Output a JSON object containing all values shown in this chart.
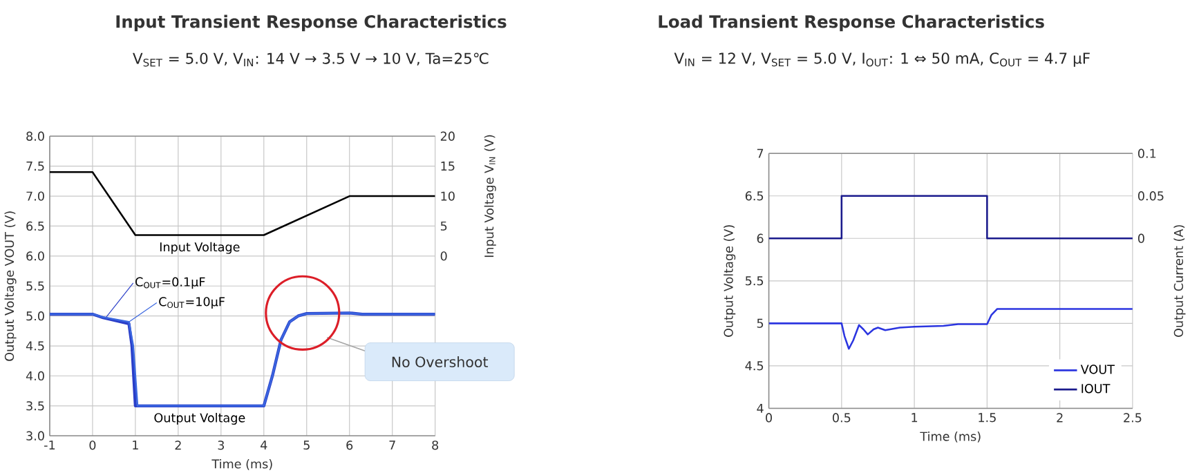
{
  "chart_data": [
    {
      "type": "line",
      "title": "Input Transient Response Characteristics",
      "subtitle": "V$_{SET}$ = 5.0 V, V$_{IN}$: 14 V → 3.5 V → 10 V,  Ta=25℃",
      "xlabel": "Time (ms)",
      "ylabel": "Output Voltage VOUT (V)",
      "y2label": "Input Voltage V$_{IN}$ (V)",
      "xlim": [
        -1,
        8
      ],
      "ylim": [
        3,
        8
      ],
      "y2lim": [
        -30,
        20
      ],
      "xticks": [
        -1,
        0,
        1,
        2,
        3,
        4,
        5,
        6,
        7,
        8
      ],
      "yticks": [
        {
          "value": 3,
          "label": "3.0"
        },
        {
          "value": 3.5,
          "label": "3.5"
        },
        {
          "value": 4,
          "label": "4.0"
        },
        {
          "value": 4.5,
          "label": "4.5"
        },
        {
          "value": 5,
          "label": "5.0"
        },
        {
          "value": 5.5,
          "label": "5.5"
        },
        {
          "value": 6,
          "label": "6.0"
        },
        {
          "value": 6.5,
          "label": "6.5"
        },
        {
          "value": 7,
          "label": "7.0"
        },
        {
          "value": 7.5,
          "label": "7.5"
        },
        {
          "value": 8,
          "label": "8.0"
        }
      ],
      "y2ticks": [
        0,
        5,
        10,
        15,
        20
      ],
      "grid": true,
      "legend": false,
      "series": [
        {
          "name": "Input Voltage",
          "color": "#000000",
          "axis": "y2",
          "x": [
            -1,
            0,
            1,
            4,
            6,
            8
          ],
          "values": [
            14,
            14,
            3.5,
            3.5,
            10,
            10
          ]
        },
        {
          "name": "C$_{OUT}$=0.1µF",
          "color": "#2a3ec8",
          "x": [
            -1,
            0,
            0.25,
            0.85,
            0.92,
            1.0,
            4,
            4.2,
            4.4,
            4.6,
            4.8,
            5,
            6,
            6.3,
            8
          ],
          "values": [
            5.03,
            5.03,
            4.97,
            4.87,
            4.5,
            3.5,
            3.5,
            4.0,
            4.6,
            4.9,
            5.0,
            5.04,
            5.05,
            5.03,
            5.03
          ]
        },
        {
          "name": "C$_{OUT}$=10µF",
          "color": "#3a66e0",
          "x": [
            -1,
            0,
            0.25,
            0.85,
            0.95,
            1.05,
            4,
            4.2,
            4.4,
            4.6,
            4.8,
            5,
            6,
            6.3,
            8
          ],
          "values": [
            5.03,
            5.03,
            4.98,
            4.9,
            4.5,
            3.5,
            3.5,
            4.0,
            4.6,
            4.9,
            5.0,
            5.04,
            5.05,
            5.03,
            5.03
          ]
        }
      ],
      "annotations": [
        {
          "text": "Output Voltage",
          "x": 2.5,
          "y": 3.5
        },
        "No Overshoot"
      ]
    },
    {
      "type": "line",
      "title": "Load Transient Response Characteristics",
      "subtitle": "V$_{IN}$ = 12 V, V$_{SET}$ = 5.0 V, I$_{OUT}$: 1 ⇔ 50 mA, C$_{OUT}$ = 4.7 µF",
      "xlabel": "Time (ms)",
      "ylabel": "Output Voltage (V)",
      "y2label": "Output Current (A)",
      "xlim": [
        0,
        2.5
      ],
      "ylim": [
        4,
        7
      ],
      "y2lim": [
        -0.2,
        0.1
      ],
      "xticks": [
        0,
        0.5,
        1,
        1.5,
        2,
        2.5
      ],
      "yticks": [
        4,
        4.5,
        5,
        5.5,
        6,
        6.5,
        7
      ],
      "y2ticks": [
        0,
        0.05,
        0.1
      ],
      "grid": true,
      "legend": "bottom right",
      "series": [
        {
          "name": "VOUT",
          "color": "#2b35e0",
          "x": [
            0,
            0.5,
            0.52,
            0.55,
            0.58,
            0.62,
            0.65,
            0.68,
            0.72,
            0.75,
            0.8,
            0.9,
            1.0,
            1.2,
            1.3,
            1.5,
            1.53,
            1.57,
            2.5
          ],
          "values": [
            5,
            5,
            4.85,
            4.7,
            4.8,
            4.98,
            4.93,
            4.87,
            4.93,
            4.95,
            4.92,
            4.95,
            4.96,
            4.97,
            4.99,
            4.99,
            5.1,
            5.17,
            5.17
          ]
        },
        {
          "name": "IOUT",
          "color": "#1a1a8c",
          "axis": "y2",
          "x": [
            0,
            0.5,
            0.5,
            1.5,
            1.5,
            2.5
          ],
          "values": [
            0,
            0,
            0.05,
            0.05,
            0,
            0
          ]
        }
      ]
    }
  ]
}
